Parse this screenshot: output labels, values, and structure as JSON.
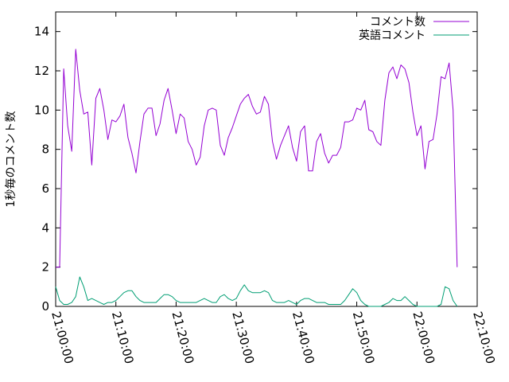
{
  "chart_data": {
    "type": "line",
    "title": "",
    "xlabel": "",
    "ylabel": "1秒毎のコメント数",
    "ylim": [
      0,
      15
    ],
    "yticks": [
      0,
      2,
      4,
      6,
      8,
      10,
      12,
      14
    ],
    "xlim": [
      "21:00:00",
      "22:10:00"
    ],
    "xticks": [
      "21:00:00",
      "21:10:00",
      "21:20:00",
      "21:30:00",
      "21:40:00",
      "21:50:00",
      "22:00:00",
      "22:10:00"
    ],
    "x_step_seconds": 40,
    "x_start": "21:00:00",
    "legend_position": "top-right",
    "grid": false,
    "series": [
      {
        "name": "コメント数",
        "color": "#9400d3",
        "values": [
          2.0,
          2.0,
          12.1,
          9.2,
          7.9,
          13.1,
          11.0,
          9.8,
          9.9,
          7.2,
          10.6,
          11.1,
          10.0,
          8.5,
          9.5,
          9.4,
          9.7,
          10.3,
          8.6,
          7.8,
          6.8,
          8.4,
          9.8,
          10.1,
          10.1,
          8.7,
          9.3,
          10.5,
          11.1,
          10.0,
          8.8,
          9.8,
          9.6,
          8.4,
          8.0,
          7.2,
          7.6,
          9.2,
          10.0,
          10.1,
          10.0,
          8.2,
          7.7,
          8.6,
          9.1,
          9.7,
          10.3,
          10.6,
          10.8,
          10.2,
          9.8,
          9.9,
          10.7,
          10.3,
          8.4,
          7.5,
          8.2,
          8.7,
          9.2,
          8.1,
          7.4,
          8.9,
          9.2,
          6.9,
          6.9,
          8.4,
          8.8,
          7.8,
          7.3,
          7.7,
          7.7,
          8.1,
          9.4,
          9.4,
          9.5,
          10.1,
          10.0,
          10.5,
          9.0,
          8.9,
          8.4,
          8.2,
          10.5,
          11.9,
          12.2,
          11.6,
          12.3,
          12.1,
          11.4,
          9.9,
          8.7,
          9.2,
          7.0,
          8.4,
          8.5,
          9.8,
          11.7,
          11.6,
          12.4,
          10.0,
          2.0
        ]
      },
      {
        "name": "英語コメント",
        "color": "#009e73",
        "values": [
          1.0,
          0.3,
          0.1,
          0.1,
          0.2,
          0.5,
          1.5,
          1.0,
          0.3,
          0.4,
          0.3,
          0.2,
          0.1,
          0.2,
          0.2,
          0.3,
          0.5,
          0.7,
          0.8,
          0.8,
          0.5,
          0.3,
          0.2,
          0.2,
          0.2,
          0.2,
          0.4,
          0.6,
          0.6,
          0.5,
          0.3,
          0.2,
          0.2,
          0.2,
          0.2,
          0.2,
          0.3,
          0.4,
          0.3,
          0.2,
          0.2,
          0.5,
          0.6,
          0.4,
          0.3,
          0.4,
          0.8,
          1.1,
          0.8,
          0.7,
          0.7,
          0.7,
          0.8,
          0.7,
          0.3,
          0.2,
          0.2,
          0.2,
          0.3,
          0.2,
          0.1,
          0.3,
          0.4,
          0.4,
          0.3,
          0.2,
          0.2,
          0.2,
          0.1,
          0.1,
          0.1,
          0.1,
          0.3,
          0.6,
          0.9,
          0.7,
          0.3,
          0.1,
          0.0,
          0.0,
          0.0,
          0.0,
          0.1,
          0.2,
          0.4,
          0.3,
          0.3,
          0.5,
          0.3,
          0.1,
          0.0,
          0.0,
          0.0,
          0.0,
          0.0,
          0.0,
          0.1,
          1.0,
          0.9,
          0.3,
          0.0
        ]
      }
    ]
  }
}
